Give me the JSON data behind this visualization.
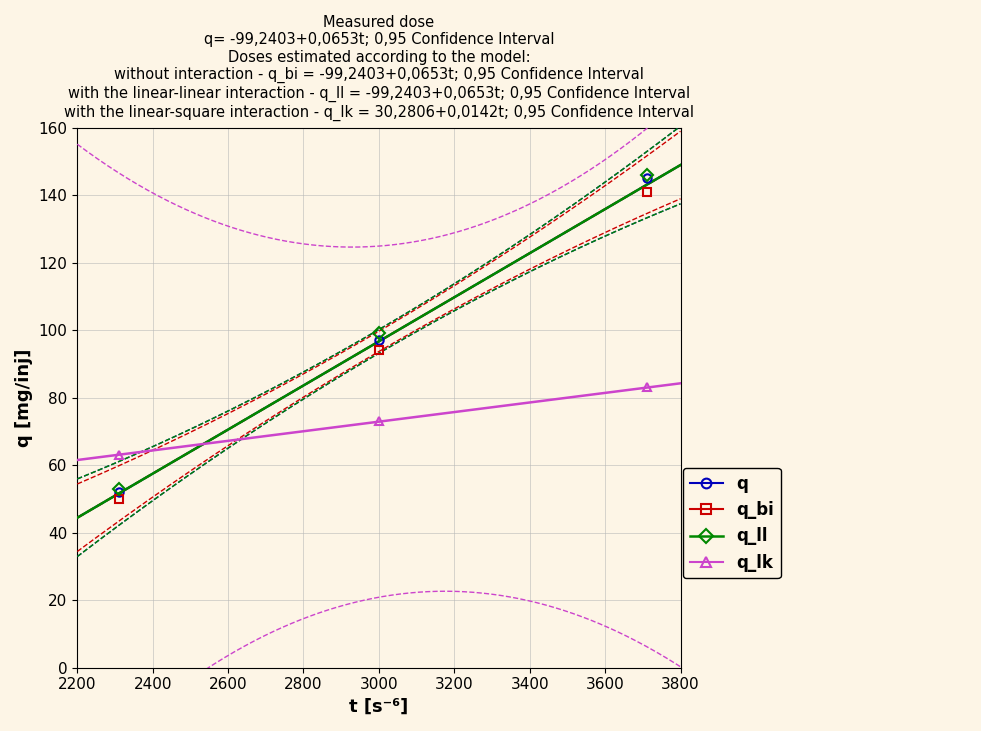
{
  "title_lines": [
    "Measured dose",
    "q= -99,2403+0,0653t; 0,95 Confidence Interval",
    "Doses estimated according to the model:",
    "without interaction - q_bi = -99,2403+0,0653t; 0,95 Confidence Interval",
    "with the linear-linear interaction - q_ll = -99,2403+0,0653t; 0,95 Confidence Interval",
    "with the linear-square interaction - q_lk = 30,2806+0,0142t; 0,95 Confidence Interval"
  ],
  "xlabel": "t [s⁻⁶]",
  "ylabel": "q [mg/inj]",
  "xlim": [
    2200,
    3800
  ],
  "ylim": [
    0,
    160
  ],
  "xticks": [
    2200,
    2400,
    2600,
    2800,
    3000,
    3200,
    3400,
    3600,
    3800
  ],
  "yticks": [
    0,
    20,
    40,
    60,
    80,
    100,
    120,
    140,
    160
  ],
  "background_color": "#fdf5e6",
  "grid_color": "#b8b8b8",
  "data_points_t": [
    2310,
    3000,
    3710
  ],
  "data_points_q": [
    52,
    97,
    145
  ],
  "data_points_qbi": [
    50,
    94,
    141
  ],
  "data_points_qll": [
    53,
    99,
    146
  ],
  "data_points_qlk": [
    63,
    73,
    83
  ],
  "q_intercept": -99.2403,
  "q_slope": 0.0653,
  "qbi_intercept": -99.2403,
  "qbi_slope": 0.0653,
  "qll_intercept": -99.2403,
  "qll_slope": 0.0653,
  "qlk_intercept": 30.2806,
  "qlk_slope": 0.0142,
  "color_q": "#0000bb",
  "color_qbi": "#cc0000",
  "color_qll": "#008800",
  "color_qlk": "#cc44cc",
  "legend_entries": [
    "q",
    "q_bi",
    "q_ll",
    "q_lk"
  ],
  "title_fontsize": 10.5,
  "axis_fontsize": 13,
  "tick_fontsize": 11,
  "legend_fontsize": 12
}
